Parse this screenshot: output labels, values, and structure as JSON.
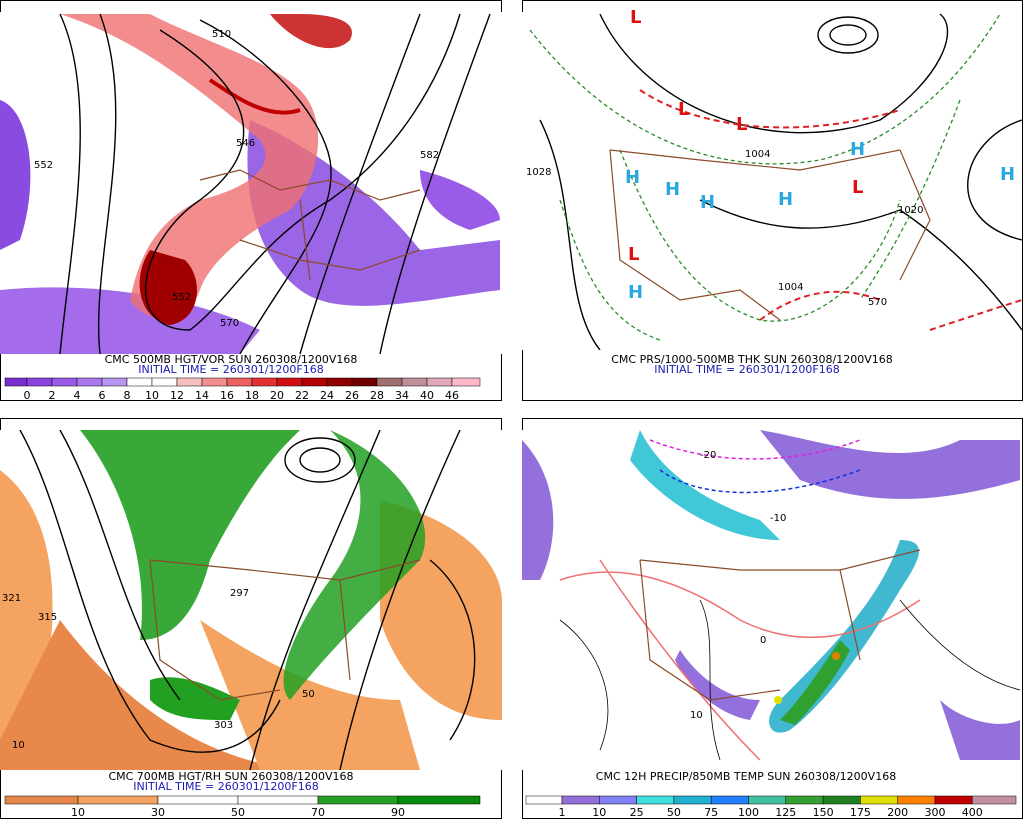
{
  "panels": [
    {
      "caption": "CMC 500MB HGT/VOR SUN 260308/1200V168",
      "initial": "INITIAL TIME = 260301/1200F168",
      "legend": [
        "0",
        "2",
        "4",
        "6",
        "8",
        "10",
        "12",
        "14",
        "16",
        "18",
        "20",
        "22",
        "24",
        "26",
        "28",
        "34",
        "40",
        "46"
      ],
      "labels": [
        "510",
        "546",
        "552",
        "552",
        "570",
        "582"
      ]
    },
    {
      "caption": "CMC PRS/1000-500MB THK SUN 260308/1200V168",
      "initial": "INITIAL TIME = 260301/1200F168",
      "labels": [
        "1028",
        "1004",
        "1004",
        "1020",
        "570",
        "L",
        "L",
        "L",
        "L",
        "L",
        "H",
        "H",
        "H",
        "H",
        "H",
        "H",
        "H"
      ]
    },
    {
      "caption": "CMC 700MB HGT/RH SUN 260308/1200V168",
      "initial": "INITIAL TIME = 260301/1200F168",
      "legend": [
        "10",
        "30",
        "50",
        "70",
        "90"
      ],
      "labels": [
        "321",
        "315",
        "297",
        "303",
        "50",
        "10"
      ]
    },
    {
      "caption": "CMC 12H PRECIP/850MB TEMP SUN 260308/1200V168",
      "legend": [
        "1",
        "10",
        "25",
        "50",
        "75",
        "100",
        "125",
        "150",
        "175",
        "200",
        "300",
        "400"
      ],
      "labels": [
        "-20",
        "-10",
        "0",
        "10"
      ]
    }
  ]
}
